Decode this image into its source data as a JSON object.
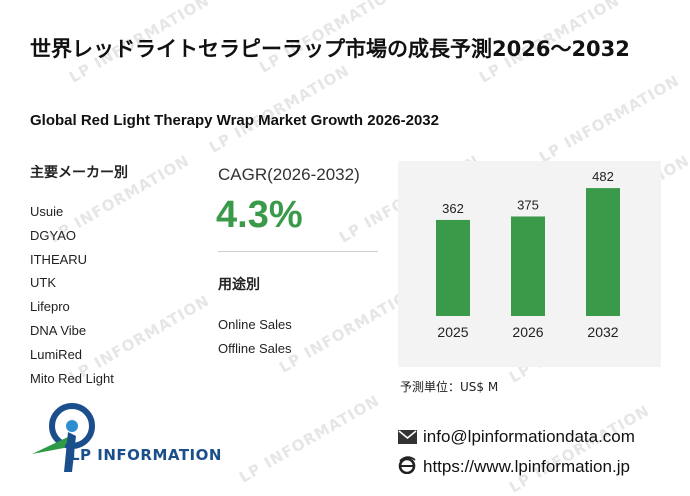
{
  "header": {
    "title": "世界レッドライトセラピーラップ市場の成長予測2026～2032",
    "subtitle": "Global Red Light Therapy Wrap Market Growth 2026-2032"
  },
  "makers": {
    "heading": "主要メーカー別",
    "items": [
      "Usuie",
      "DGYAO",
      "ITHEARU",
      "UTK",
      "Lifepro",
      "DNA Vibe",
      "LumiRed",
      "Mito Red Light"
    ]
  },
  "cagr": {
    "label": "CAGR(2026-2032)",
    "value": "4.3%"
  },
  "uses": {
    "heading": "用途別",
    "items": [
      "Online Sales",
      "Offline Sales"
    ]
  },
  "chart_data": {
    "type": "bar",
    "categories": [
      "2025",
      "2026",
      "2032"
    ],
    "values": [
      362,
      375,
      482
    ],
    "title": "",
    "xlabel": "",
    "ylabel": "",
    "ylim": [
      0,
      520
    ],
    "grid": false,
    "legend": "none",
    "bar_color": "#3a9a4a"
  },
  "unit_label": "予測単位：US$ M",
  "contact": {
    "email": "info@lpinformationdata.com",
    "website": "https://www.lpinformation.jp"
  },
  "logo": {
    "text": "LP INFORMATION"
  },
  "watermark_text": "LP INFORMATION",
  "colors": {
    "accent_green": "#3a9a4a",
    "logo_blue": "#1b4f8c",
    "chart_bg": "#f3f3f3"
  }
}
